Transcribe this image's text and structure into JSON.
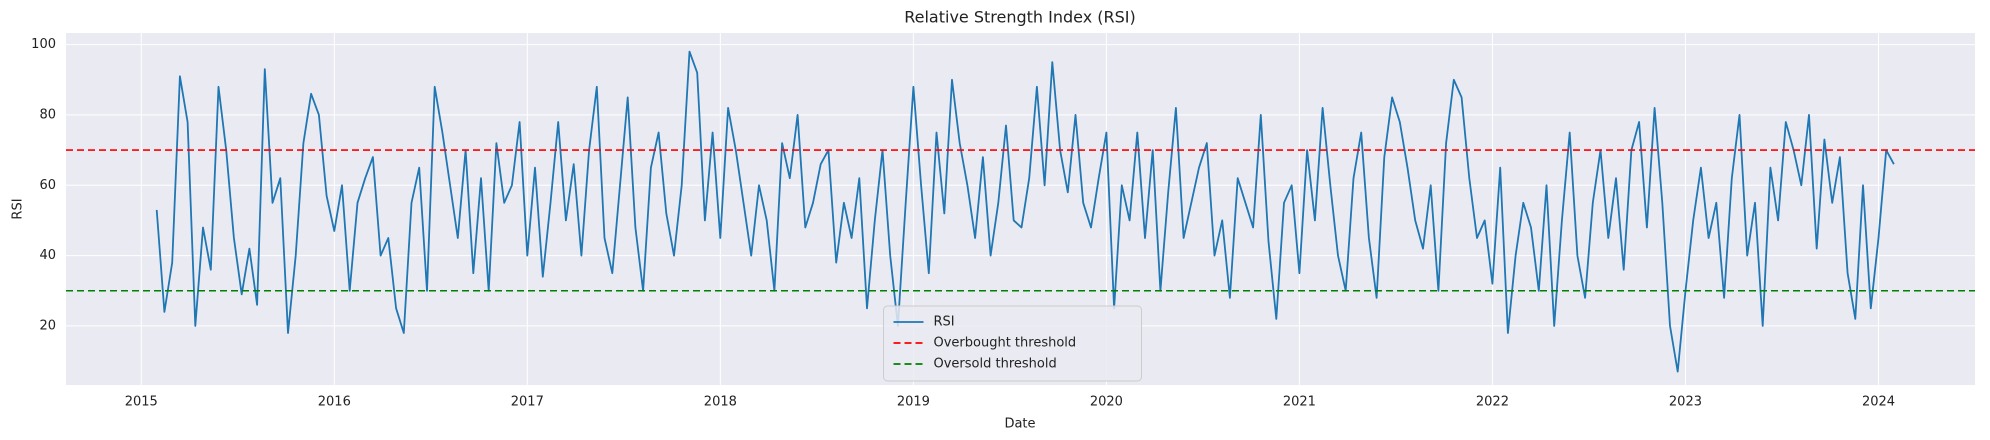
{
  "chart_data": {
    "type": "line",
    "title": "Relative Strength Index (RSI)",
    "x_label": "Date",
    "y_label": "RSI",
    "x": [
      2015.08,
      2015.12,
      2015.16,
      2015.2,
      2015.24,
      2015.28,
      2015.32,
      2015.36,
      2015.4,
      2015.44,
      2015.48,
      2015.52,
      2015.56,
      2015.6,
      2015.64,
      2015.68,
      2015.72,
      2015.76,
      2015.8,
      2015.84,
      2015.88,
      2015.92,
      2015.96,
      2016.0,
      2016.04,
      2016.08,
      2016.12,
      2016.16,
      2016.2,
      2016.24,
      2016.28,
      2016.32,
      2016.36,
      2016.4,
      2016.44,
      2016.48,
      2016.52,
      2016.56,
      2016.6,
      2016.64,
      2016.68,
      2016.72,
      2016.76,
      2016.8,
      2016.84,
      2016.88,
      2016.92,
      2016.96,
      2017.0,
      2017.04,
      2017.08,
      2017.12,
      2017.16,
      2017.2,
      2017.24,
      2017.28,
      2017.32,
      2017.36,
      2017.4,
      2017.44,
      2017.48,
      2017.52,
      2017.56,
      2017.6,
      2017.64,
      2017.68,
      2017.72,
      2017.76,
      2017.8,
      2017.84,
      2017.88,
      2017.92,
      2017.96,
      2018.0,
      2018.04,
      2018.08,
      2018.12,
      2018.16,
      2018.2,
      2018.24,
      2018.28,
      2018.32,
      2018.36,
      2018.4,
      2018.44,
      2018.48,
      2018.52,
      2018.56,
      2018.6,
      2018.64,
      2018.68,
      2018.72,
      2018.76,
      2018.8,
      2018.84,
      2018.88,
      2018.92,
      2018.96,
      2019.0,
      2019.04,
      2019.08,
      2019.12,
      2019.16,
      2019.2,
      2019.24,
      2019.28,
      2019.32,
      2019.36,
      2019.4,
      2019.44,
      2019.48,
      2019.52,
      2019.56,
      2019.6,
      2019.64,
      2019.68,
      2019.72,
      2019.76,
      2019.8,
      2019.84,
      2019.88,
      2019.92,
      2019.96,
      2020.0,
      2020.04,
      2020.08,
      2020.12,
      2020.16,
      2020.2,
      2020.24,
      2020.28,
      2020.32,
      2020.36,
      2020.4,
      2020.44,
      2020.48,
      2020.52,
      2020.56,
      2020.6,
      2020.64,
      2020.68,
      2020.72,
      2020.76,
      2020.8,
      2020.84,
      2020.88,
      2020.92,
      2020.96,
      2021.0,
      2021.04,
      2021.08,
      2021.12,
      2021.16,
      2021.2,
      2021.24,
      2021.28,
      2021.32,
      2021.36,
      2021.4,
      2021.44,
      2021.48,
      2021.52,
      2021.56,
      2021.6,
      2021.64,
      2021.68,
      2021.72,
      2021.76,
      2021.8,
      2021.84,
      2021.88,
      2021.92,
      2021.96,
      2022.0,
      2022.04,
      2022.08,
      2022.12,
      2022.16,
      2022.2,
      2022.24,
      2022.28,
      2022.32,
      2022.36,
      2022.4,
      2022.44,
      2022.48,
      2022.52,
      2022.56,
      2022.6,
      2022.64,
      2022.68,
      2022.72,
      2022.76,
      2022.8,
      2022.84,
      2022.88,
      2022.92,
      2022.96,
      2023.0,
      2023.04,
      2023.08,
      2023.12,
      2023.16,
      2023.2,
      2023.24,
      2023.28,
      2023.32,
      2023.36,
      2023.4,
      2023.44,
      2023.48,
      2023.52,
      2023.56,
      2023.6,
      2023.64,
      2023.68,
      2023.72,
      2023.76,
      2023.8,
      2023.84,
      2023.88,
      2023.92,
      2023.96,
      2024.0,
      2024.04,
      2024.08
    ],
    "series": [
      {
        "name": "RSI",
        "color": "#1f77b4",
        "values": [
          53,
          24,
          38,
          91,
          78,
          20,
          48,
          36,
          88,
          70,
          45,
          29,
          42,
          26,
          93,
          55,
          62,
          18,
          40,
          72,
          86,
          80,
          57,
          47,
          60,
          30,
          55,
          62,
          68,
          40,
          45,
          25,
          18,
          55,
          65,
          30,
          88,
          75,
          60,
          45,
          70,
          35,
          62,
          30,
          72,
          55,
          60,
          78,
          40,
          65,
          34,
          55,
          78,
          50,
          66,
          40,
          70,
          88,
          45,
          35,
          60,
          85,
          48,
          30,
          65,
          75,
          52,
          40,
          60,
          98,
          92,
          50,
          75,
          45,
          82,
          70,
          55,
          40,
          60,
          50,
          30,
          72,
          62,
          80,
          48,
          55,
          66,
          70,
          38,
          55,
          45,
          62,
          25,
          50,
          70,
          40,
          20,
          55,
          88,
          60,
          35,
          75,
          52,
          90,
          72,
          60,
          45,
          68,
          40,
          55,
          77,
          50,
          48,
          62,
          88,
          60,
          95,
          70,
          58,
          80,
          55,
          48,
          62,
          75,
          25,
          60,
          50,
          75,
          45,
          70,
          30,
          58,
          82,
          45,
          55,
          65,
          72,
          40,
          50,
          28,
          62,
          55,
          48,
          80,
          44,
          22,
          55,
          60,
          35,
          70,
          50,
          82,
          60,
          40,
          30,
          62,
          75,
          45,
          28,
          68,
          85,
          78,
          65,
          50,
          42,
          60,
          30,
          72,
          90,
          85,
          62,
          45,
          50,
          32,
          65,
          18,
          40,
          55,
          48,
          30,
          60,
          20,
          50,
          75,
          40,
          28,
          55,
          70,
          45,
          62,
          36,
          70,
          78,
          48,
          82,
          55,
          20,
          7,
          30,
          50,
          65,
          45,
          55,
          28,
          62,
          80,
          40,
          55,
          20,
          65,
          50,
          78,
          70,
          60,
          80,
          42,
          73,
          55,
          68,
          35,
          22,
          60,
          25,
          45,
          70,
          66
        ]
      }
    ],
    "hlines": [
      {
        "name": "Overbought threshold",
        "value": 70,
        "color": "red"
      },
      {
        "name": "Oversold threshold",
        "value": 30,
        "color": "green"
      }
    ],
    "xlim": [
      2014.61,
      2024.5
    ],
    "xticks": [
      2015,
      2016,
      2017,
      2018,
      2019,
      2020,
      2021,
      2022,
      2023,
      2024
    ],
    "ylim": [
      3.2,
      103.3
    ],
    "yticks": [
      20,
      40,
      60,
      80,
      100
    ],
    "grid": true,
    "legend": "lower center"
  }
}
